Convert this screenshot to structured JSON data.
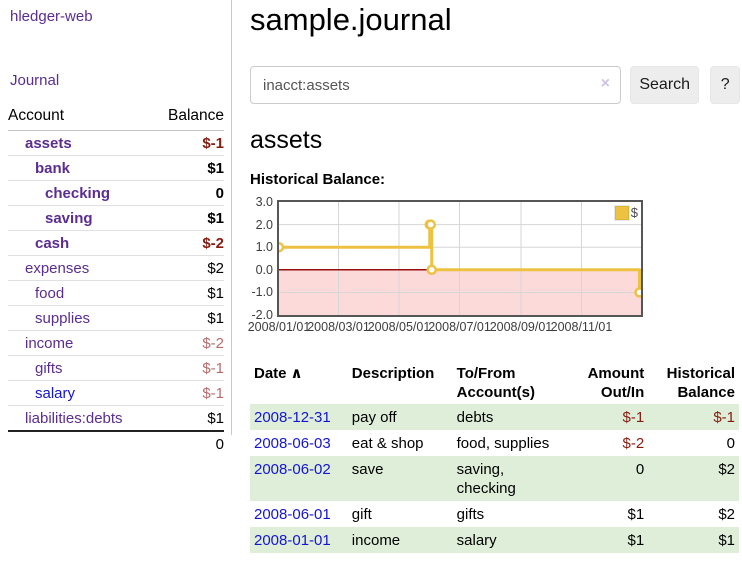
{
  "colors": {
    "link_purple": "#5b2d91",
    "link_blue": "#1414d4",
    "negative_strong": "#871b10",
    "negative_soft": "#b86b6b",
    "row_stripe_green": "#dfeed9",
    "chart_line_gold": "#edc240"
  },
  "app": {
    "brand": "hledger-web",
    "journal_link": "Journal"
  },
  "sidebar": {
    "headers": {
      "account": "Account",
      "balance": "Balance"
    },
    "accounts": [
      {
        "name": "assets",
        "balance": "$-1",
        "indent": 1,
        "bold": true
      },
      {
        "name": "bank",
        "balance": "$1",
        "indent": 2,
        "bold": true
      },
      {
        "name": "checking",
        "balance": "0",
        "indent": 3,
        "bold": true
      },
      {
        "name": "saving",
        "balance": "$1",
        "indent": 3,
        "bold": true
      },
      {
        "name": "cash",
        "balance": "$-2",
        "indent": 2,
        "bold": true
      },
      {
        "name": "expenses",
        "balance": "$2",
        "indent": 1
      },
      {
        "name": "food",
        "balance": "$1",
        "indent": 2
      },
      {
        "name": "supplies",
        "balance": "$1",
        "indent": 2
      },
      {
        "name": "income",
        "balance": "$-2",
        "indent": 1
      },
      {
        "name": "gifts",
        "balance": "$-1",
        "indent": 2
      },
      {
        "name": "salary",
        "balance": "$-1",
        "indent": 2,
        "color": "blue"
      },
      {
        "name": "liabilities:debts",
        "balance": "$1",
        "indent": 1
      }
    ],
    "total": "0"
  },
  "main": {
    "title": "sample.journal",
    "search": {
      "value": "inacct:assets",
      "clear_icon": "×",
      "search_button": "Search",
      "help_button": "?"
    },
    "account_heading": "assets",
    "chart_title": "Historical Balance:"
  },
  "chart_data": {
    "type": "line",
    "step": true,
    "title": "Historical Balance:",
    "series": [
      {
        "name": "$",
        "color": "#edc240",
        "points": [
          [
            "2008-01-01",
            1.0
          ],
          [
            "2008-06-01",
            2.0
          ],
          [
            "2008-06-02",
            2.0
          ],
          [
            "2008-06-03",
            0.0
          ],
          [
            "2008-12-31",
            -1.0
          ]
        ]
      }
    ],
    "ylim": [
      -2,
      3
    ],
    "yticks": [
      "3.0",
      "2.0",
      "1.0",
      "0.0",
      "-1.0",
      "-2.0"
    ],
    "xticks": [
      "2008/01/01",
      "2008/03/01",
      "2008/05/01",
      "2008/07/01",
      "2008/09/01",
      "2008/11/01"
    ],
    "x_domain": [
      "2008-01-01",
      "2008-12-31"
    ],
    "legend": {
      "label": "$",
      "position": "top-right"
    },
    "grid": true,
    "colors": {
      "line": "#edc240",
      "negative_fill": "#fcdada",
      "zero_line": "#990f0f",
      "plot_border": "#565656",
      "gridline": "#d6d6d6"
    }
  },
  "register": {
    "headers": {
      "date": "Date",
      "sort_icon": "∧",
      "description": "Description",
      "tofrom": "To/From Account(s)",
      "amount": "Amount Out/In",
      "balance": "Historical Balance"
    },
    "rows": [
      {
        "date": "2008-12-31",
        "description": "pay off",
        "accounts": "debts",
        "amount": "$-1",
        "balance": "$-1"
      },
      {
        "date": "2008-06-03",
        "description": "eat & shop",
        "accounts": "food, supplies",
        "amount": "$-2",
        "balance": "0"
      },
      {
        "date": "2008-06-02",
        "description": "save",
        "accounts": "saving, checking",
        "amount": "0",
        "balance": "$2"
      },
      {
        "date": "2008-06-01",
        "description": "gift",
        "accounts": "gifts",
        "amount": "$1",
        "balance": "$2"
      },
      {
        "date": "2008-01-01",
        "description": "income",
        "accounts": "salary",
        "amount": "$1",
        "balance": "$1"
      }
    ]
  }
}
